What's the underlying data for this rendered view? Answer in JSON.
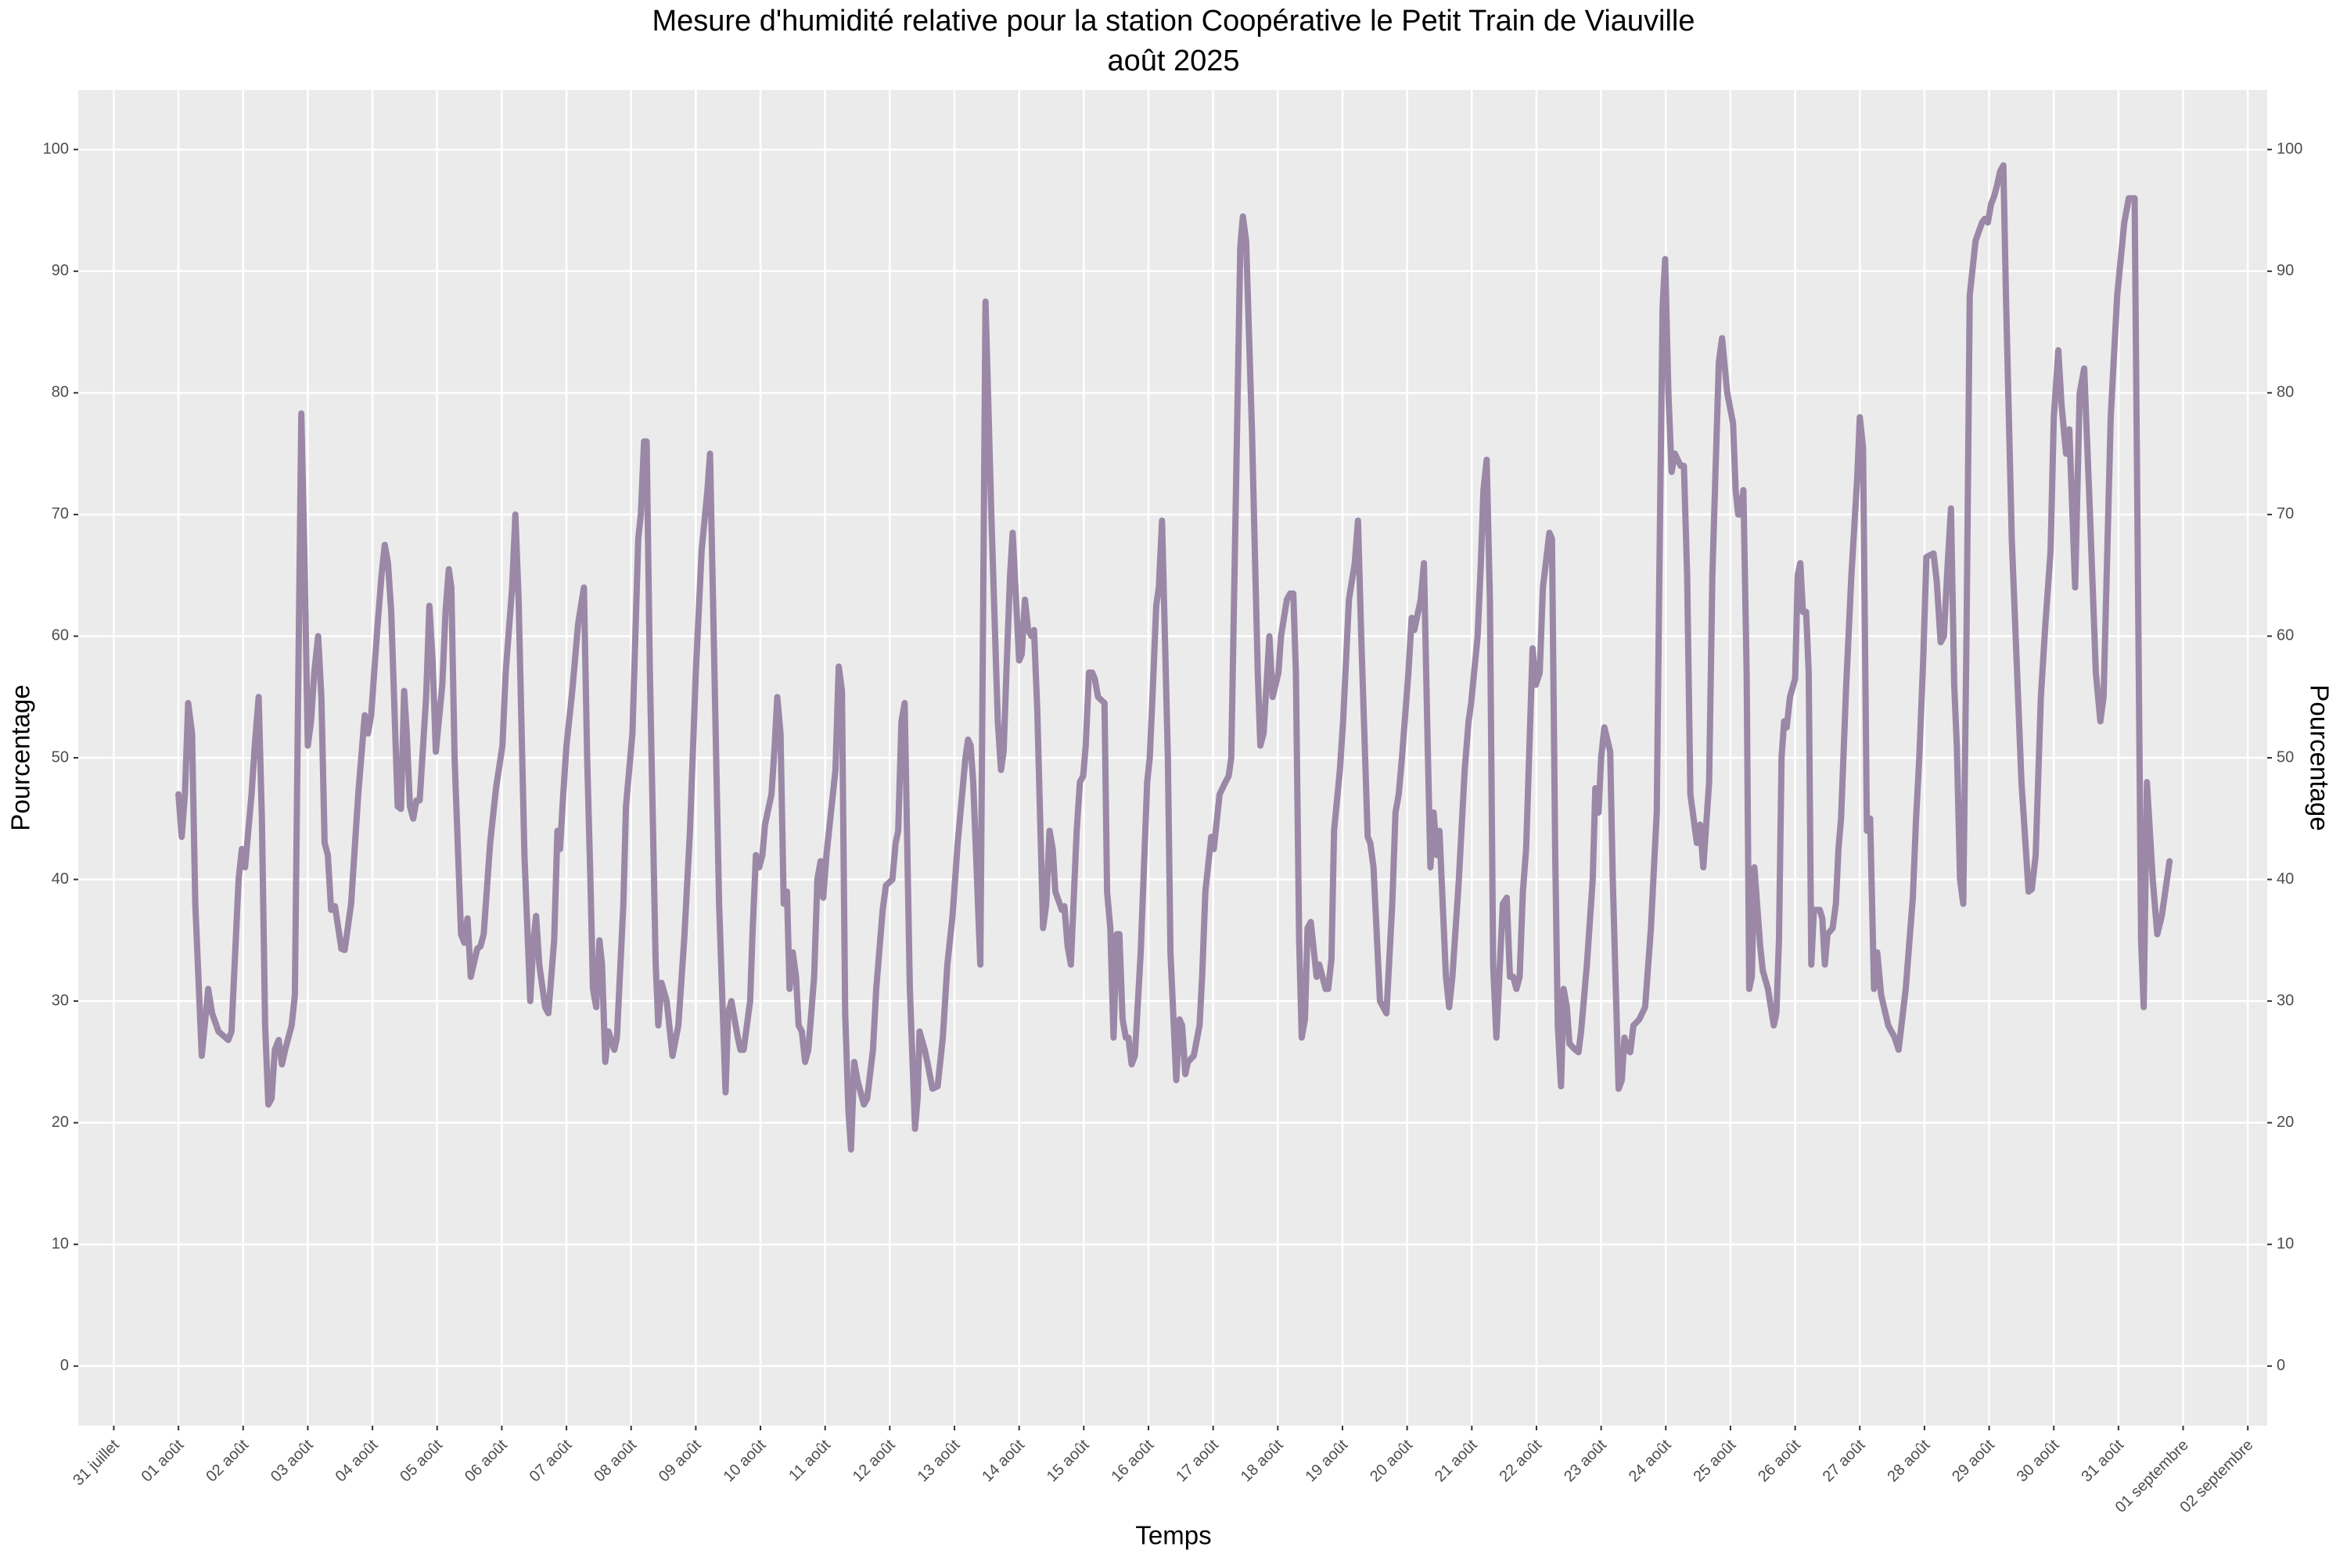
{
  "chart_data": {
    "type": "line",
    "title": "Mesure d'humidité relative pour la station Coopérative le Petit Train de Viauville",
    "subtitle": "août 2025",
    "x_label": "Temps",
    "y_label": "Pourcentage",
    "y2_label": "Pourcentage",
    "grid": true,
    "background": "#ebebeb",
    "xlim": [
      -0.55,
      33.3
    ],
    "ylim": [
      -4.9,
      104.9
    ],
    "y2lim": [
      -4.9,
      104.9
    ],
    "yticks": [
      0,
      10,
      20,
      30,
      40,
      50,
      60,
      70,
      80,
      90,
      100
    ],
    "y2ticks": [
      0,
      10,
      20,
      30,
      40,
      50,
      60,
      70,
      80,
      90,
      100
    ],
    "xticks": [
      {
        "value": 0,
        "label": "31 juillet"
      },
      {
        "value": 1,
        "label": "01 août"
      },
      {
        "value": 2,
        "label": "02 août"
      },
      {
        "value": 3,
        "label": "03 août"
      },
      {
        "value": 4,
        "label": "04 août"
      },
      {
        "value": 5,
        "label": "05 août"
      },
      {
        "value": 6,
        "label": "06 août"
      },
      {
        "value": 7,
        "label": "07 août"
      },
      {
        "value": 8,
        "label": "08 août"
      },
      {
        "value": 9,
        "label": "09 août"
      },
      {
        "value": 10,
        "label": "10 août"
      },
      {
        "value": 11,
        "label": "11 août"
      },
      {
        "value": 12,
        "label": "12 août"
      },
      {
        "value": 13,
        "label": "13 août"
      },
      {
        "value": 14,
        "label": "14 août"
      },
      {
        "value": 15,
        "label": "15 août"
      },
      {
        "value": 16,
        "label": "16 août"
      },
      {
        "value": 17,
        "label": "17 août"
      },
      {
        "value": 18,
        "label": "18 août"
      },
      {
        "value": 19,
        "label": "19 août"
      },
      {
        "value": 20,
        "label": "20 août"
      },
      {
        "value": 21,
        "label": "21 août"
      },
      {
        "value": 22,
        "label": "22 août"
      },
      {
        "value": 23,
        "label": "23 août"
      },
      {
        "value": 24,
        "label": "24 août"
      },
      {
        "value": 25,
        "label": "25 août"
      },
      {
        "value": 26,
        "label": "26 août"
      },
      {
        "value": 27,
        "label": "27 août"
      },
      {
        "value": 28,
        "label": "28 août"
      },
      {
        "value": 29,
        "label": "29 août"
      },
      {
        "value": 30,
        "label": "30 août"
      },
      {
        "value": 31,
        "label": "31 août"
      },
      {
        "value": 32,
        "label": "01 septembre"
      },
      {
        "value": 33,
        "label": "02 septembre"
      }
    ],
    "x": [
      1.0,
      1.05,
      1.1,
      1.15,
      1.21,
      1.26,
      1.36,
      1.46,
      1.52,
      1.62,
      1.77,
      1.82,
      1.93,
      1.98,
      2.03,
      2.08,
      2.13,
      2.18,
      2.24,
      2.29,
      2.34,
      2.39,
      2.44,
      2.49,
      2.55,
      2.6,
      2.65,
      2.75,
      2.8,
      2.85,
      2.9,
      2.95,
      3.0,
      3.05,
      3.1,
      3.16,
      3.21,
      3.26,
      3.31,
      3.36,
      3.42,
      3.52,
      3.57,
      3.67,
      3.78,
      3.88,
      3.93,
      3.98,
      4.08,
      4.14,
      4.19,
      4.24,
      4.29,
      4.39,
      4.44,
      4.49,
      4.53,
      4.58,
      4.63,
      4.68,
      4.73,
      4.83,
      4.88,
      4.93,
      4.98,
      5.08,
      5.13,
      5.18,
      5.22,
      5.27,
      5.37,
      5.42,
      5.47,
      5.52,
      5.62,
      5.67,
      5.72,
      5.82,
      5.91,
      6.01,
      6.06,
      6.16,
      6.21,
      6.26,
      6.35,
      6.44,
      6.49,
      6.53,
      6.58,
      6.67,
      6.72,
      6.81,
      6.86,
      6.9,
      6.95,
      7.0,
      7.09,
      7.18,
      7.27,
      7.32,
      7.37,
      7.41,
      7.46,
      7.51,
      7.55,
      7.6,
      7.65,
      7.74,
      7.78,
      7.88,
      7.92,
      8.02,
      8.11,
      8.15,
      8.2,
      8.24,
      8.29,
      8.38,
      8.42,
      8.47,
      8.55,
      8.64,
      8.73,
      8.82,
      8.91,
      9.0,
      9.09,
      9.18,
      9.22,
      9.27,
      9.36,
      9.46,
      9.5,
      9.55,
      9.65,
      9.69,
      9.74,
      9.84,
      9.88,
      9.93,
      9.98,
      10.03,
      10.07,
      10.17,
      10.22,
      10.26,
      10.31,
      10.36,
      10.41,
      10.45,
      10.5,
      10.55,
      10.59,
      10.64,
      10.69,
      10.74,
      10.83,
      10.88,
      10.93,
      10.97,
      11.02,
      11.12,
      11.16,
      11.21,
      11.26,
      11.31,
      11.36,
      11.4,
      11.45,
      11.5,
      11.6,
      11.65,
      11.74,
      11.79,
      11.89,
      11.94,
      12.04,
      12.09,
      12.13,
      12.18,
      12.23,
      12.31,
      12.39,
      12.43,
      12.46,
      12.54,
      12.58,
      12.66,
      12.74,
      12.82,
      12.89,
      12.97,
      13.05,
      13.17,
      13.21,
      13.25,
      13.29,
      13.4,
      13.44,
      13.48,
      13.57,
      13.67,
      13.72,
      13.76,
      13.81,
      13.86,
      13.9,
      14.0,
      14.04,
      14.09,
      14.14,
      14.19,
      14.23,
      14.28,
      14.37,
      14.42,
      14.47,
      14.52,
      14.56,
      14.66,
      14.7,
      14.75,
      14.8,
      14.89,
      14.94,
      14.99,
      15.03,
      15.08,
      15.13,
      15.17,
      15.22,
      15.32,
      15.36,
      15.41,
      15.46,
      15.51,
      15.55,
      15.6,
      15.65,
      15.69,
      15.74,
      15.79,
      15.88,
      15.98,
      16.02,
      16.07,
      16.12,
      16.16,
      16.21,
      16.3,
      16.34,
      16.43,
      16.48,
      16.52,
      16.57,
      16.61,
      16.7,
      16.79,
      16.83,
      16.88,
      16.97,
      17.01,
      17.06,
      17.1,
      17.19,
      17.24,
      17.28,
      17.33,
      17.42,
      17.46,
      17.51,
      17.6,
      17.69,
      17.73,
      17.78,
      17.87,
      17.92,
      18.01,
      18.05,
      18.14,
      18.19,
      18.24,
      18.28,
      18.33,
      18.37,
      18.42,
      18.46,
      18.51,
      18.6,
      18.64,
      18.74,
      18.78,
      18.83,
      18.87,
      18.96,
      19.01,
      19.1,
      19.19,
      19.24,
      19.29,
      19.39,
      19.43,
      19.48,
      19.58,
      19.68,
      19.77,
      19.82,
      19.87,
      19.92,
      20.02,
      20.07,
      20.11,
      20.21,
      20.26,
      20.31,
      20.36,
      20.41,
      20.46,
      20.5,
      20.6,
      20.65,
      20.7,
      20.8,
      20.89,
      20.95,
      20.99,
      21.09,
      21.14,
      21.18,
      21.23,
      21.28,
      21.33,
      21.38,
      21.48,
      21.54,
      21.59,
      21.64,
      21.69,
      21.74,
      21.79,
      21.84,
      21.94,
      21.99,
      22.05,
      22.1,
      22.2,
      22.24,
      22.29,
      22.33,
      22.38,
      22.42,
      22.47,
      22.51,
      22.6,
      22.65,
      22.69,
      22.78,
      22.87,
      22.91,
      22.96,
      23.0,
      23.05,
      23.14,
      23.18,
      23.27,
      23.32,
      23.36,
      23.41,
      23.45,
      23.5,
      23.59,
      23.68,
      23.77,
      23.86,
      23.9,
      23.95,
      23.99,
      24.04,
      24.09,
      24.14,
      24.23,
      24.28,
      24.33,
      24.38,
      24.48,
      24.53,
      24.58,
      24.67,
      24.72,
      24.82,
      24.87,
      24.95,
      25.04,
      25.08,
      25.12,
      25.16,
      25.2,
      25.25,
      25.29,
      25.33,
      25.37,
      25.46,
      25.5,
      25.58,
      25.67,
      25.71,
      25.75,
      25.79,
      25.83,
      25.87,
      25.92,
      26.0,
      26.04,
      26.08,
      26.12,
      26.17,
      26.21,
      26.25,
      26.29,
      26.38,
      26.42,
      26.46,
      26.5,
      26.58,
      26.63,
      26.67,
      26.71,
      26.79,
      26.87,
      26.96,
      27.0,
      27.05,
      27.11,
      27.16,
      27.22,
      27.27,
      27.33,
      27.44,
      27.54,
      27.6,
      27.71,
      27.82,
      27.87,
      27.92,
      27.98,
      28.03,
      28.14,
      28.19,
      28.25,
      28.3,
      28.36,
      28.41,
      28.46,
      28.5,
      28.55,
      28.6,
      28.65,
      28.7,
      28.79,
      28.89,
      28.93,
      28.98,
      29.03,
      29.08,
      29.12,
      29.17,
      29.22,
      29.26,
      29.35,
      29.5,
      29.61,
      29.66,
      29.72,
      29.8,
      29.87,
      29.95,
      30.0,
      30.07,
      30.12,
      30.19,
      30.24,
      30.33,
      30.4,
      30.47,
      30.56,
      30.65,
      30.72,
      30.77,
      30.88,
      30.98,
      31.09,
      31.16,
      31.25,
      31.35,
      31.39,
      31.44,
      31.53,
      31.6,
      31.67,
      31.79
    ],
    "series": [
      {
        "color": "#9a88a6",
        "values": [
          47,
          43.5,
          47,
          54.5,
          52,
          38,
          25.5,
          31,
          29,
          27.5,
          26.8,
          27.5,
          40,
          42.5,
          41,
          44,
          47,
          51,
          55,
          45,
          28,
          21.5,
          22,
          26,
          26.8,
          24.8,
          26,
          28,
          30.5,
          55,
          78.3,
          66,
          51,
          53,
          57,
          60,
          55,
          43,
          42,
          37.5,
          37.8,
          34.3,
          34.2,
          38,
          47,
          53.5,
          52,
          53.5,
          61,
          65,
          67.5,
          66,
          62,
          46,
          45.8,
          55.5,
          52,
          46,
          45,
          46.5,
          46.5,
          55,
          62.5,
          58,
          50.5,
          56,
          62,
          65.5,
          64,
          50,
          35.5,
          34.8,
          36.8,
          32,
          34.3,
          34.5,
          35.5,
          43,
          47.5,
          51,
          57,
          64,
          70,
          63,
          42,
          30,
          35,
          37,
          33,
          29.5,
          29,
          35,
          44,
          42.5,
          47,
          51,
          55.5,
          61,
          64,
          50,
          40,
          31,
          29.5,
          35,
          33,
          25,
          27.5,
          26,
          27,
          38,
          46,
          52,
          68,
          70,
          76,
          76,
          57,
          33,
          28,
          31.5,
          30,
          25.5,
          28,
          35,
          44,
          57,
          67,
          72,
          75,
          62,
          38,
          22.5,
          29,
          30,
          27,
          26,
          26,
          30,
          36,
          42,
          41,
          42,
          44.5,
          47,
          51,
          55,
          52,
          38,
          39,
          31,
          34,
          32,
          28,
          27.5,
          25,
          26,
          32,
          40,
          41.5,
          38.5,
          42,
          47,
          49,
          57.5,
          55.5,
          29,
          21,
          17.8,
          25,
          23.5,
          21.5,
          22,
          26,
          31,
          37.5,
          39.5,
          40,
          43,
          44,
          53,
          54.5,
          31,
          19.5,
          22,
          27.5,
          26,
          25,
          22.8,
          23,
          27,
          33,
          37,
          43,
          50,
          51.5,
          51,
          48,
          33,
          60,
          87.5,
          70,
          53,
          49,
          50.5,
          58,
          65,
          68.5,
          58,
          58.5,
          63,
          60.5,
          60,
          60.5,
          54,
          36,
          38,
          44,
          42.5,
          39,
          37.5,
          37.8,
          34.5,
          33,
          44,
          48,
          48.5,
          51,
          57,
          57,
          56.5,
          55,
          54.5,
          39,
          36,
          27,
          35.5,
          35.5,
          28.5,
          27,
          27,
          24.8,
          25.5,
          34,
          48,
          50,
          56,
          62.5,
          64,
          69.5,
          50,
          34,
          23.5,
          28.5,
          28,
          24,
          25,
          25.5,
          28,
          32,
          39,
          43.5,
          42.5,
          45,
          47,
          48,
          48.5,
          50,
          65,
          92,
          94.5,
          92.5,
          77,
          57,
          51,
          52,
          60,
          55,
          57,
          60,
          63,
          63.5,
          63.5,
          57,
          35,
          27,
          28.5,
          36,
          36.5,
          32,
          33,
          31,
          31,
          33.5,
          44,
          49,
          53,
          63,
          66,
          69.5,
          60,
          43.5,
          43,
          41,
          30,
          29,
          38,
          45.5,
          47,
          50,
          57,
          61.5,
          60.5,
          63,
          66,
          53,
          41,
          45.5,
          42,
          44,
          32,
          29.5,
          32,
          40,
          49,
          53,
          54.5,
          60,
          66,
          72,
          74.5,
          63,
          33,
          27,
          38,
          38.5,
          32,
          32,
          31,
          32,
          39,
          42.5,
          59,
          56,
          57,
          64,
          68.5,
          68,
          42,
          28,
          23,
          31,
          29.5,
          26.5,
          26,
          25.8,
          27.5,
          33,
          40,
          47.5,
          45.5,
          50,
          52.5,
          50.5,
          40,
          22.8,
          23.5,
          27,
          26,
          25.8,
          28,
          28.5,
          29.5,
          36,
          45.5,
          65,
          87,
          91,
          80,
          73.5,
          75,
          74,
          74,
          65,
          47,
          43,
          44.5,
          41,
          48,
          65,
          82.5,
          84.5,
          80,
          77.5,
          72,
          70,
          70,
          72,
          57,
          31,
          32,
          41,
          34.5,
          32.5,
          31,
          28,
          29,
          35,
          50,
          53,
          52.5,
          55,
          56.5,
          65,
          66,
          62,
          62,
          57,
          33,
          37.5,
          37.5,
          36.8,
          33,
          35.5,
          36,
          38,
          42.5,
          45,
          56,
          65,
          73,
          78,
          75.5,
          44,
          45,
          31,
          34,
          30.5,
          28,
          27,
          26,
          31,
          38.5,
          45,
          50,
          58,
          66.5,
          66.8,
          64.5,
          59.5,
          60,
          66,
          70.5,
          56,
          51,
          40,
          38,
          60,
          88,
          92.5,
          94,
          94.3,
          94,
          95.5,
          96.2,
          97,
          98.2,
          98.7,
          88,
          68,
          48,
          39,
          39.2,
          42,
          55,
          61,
          67,
          78,
          83.5,
          79,
          75,
          77,
          64,
          80,
          82,
          70,
          57,
          53,
          55,
          78,
          88,
          94,
          96,
          96,
          35,
          29.5,
          48,
          40,
          35.5,
          37,
          41.5
        ]
      }
    ]
  }
}
